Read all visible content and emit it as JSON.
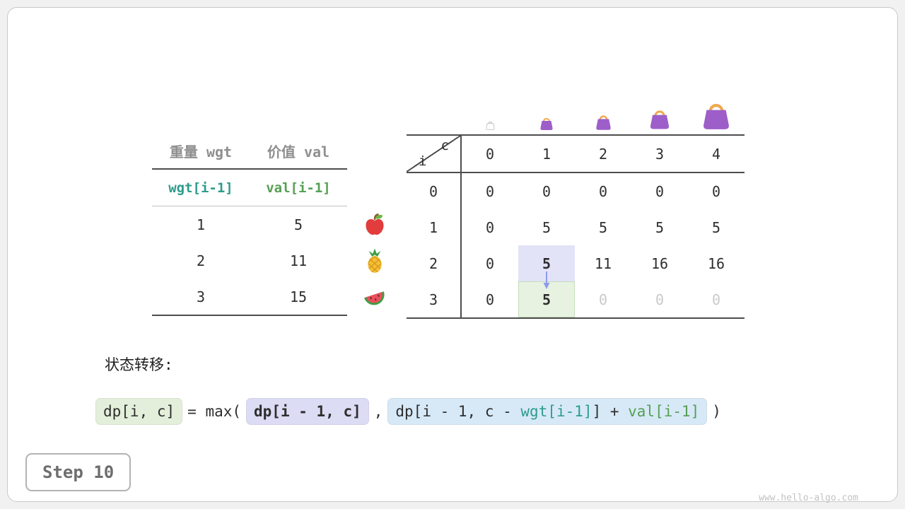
{
  "page": {
    "step_label": "Step 10",
    "watermark": "www.hello-algo.com"
  },
  "weights_table": {
    "col_headers": [
      "重量 wgt",
      "价值 val"
    ],
    "formula_row": {
      "wgt": "wgt[i-1]",
      "val": "val[i-1]"
    },
    "rows": [
      [
        "1",
        "5"
      ],
      [
        "2",
        "11"
      ],
      [
        "3",
        "15"
      ]
    ]
  },
  "icons": {
    "fruits": [
      "apple-icon",
      "pineapple-icon",
      "watermelon-icon"
    ],
    "bags": [
      "bag-icon-capacity-0",
      "bag-icon-capacity-1",
      "bag-icon-capacity-2",
      "bag-icon-capacity-3",
      "bag-icon-capacity-4"
    ],
    "arrow": "transition-arrow-icon"
  },
  "dp_table": {
    "corner": {
      "row_axis": "i",
      "col_axis": "c"
    },
    "col_headers": [
      "0",
      "1",
      "2",
      "3",
      "4"
    ],
    "row_headers": [
      "0",
      "1",
      "2",
      "3"
    ],
    "rows": [
      [
        "0",
        "0",
        "0",
        "0",
        "0"
      ],
      [
        "0",
        "5",
        "5",
        "5",
        "5"
      ],
      [
        "0",
        "5",
        "11",
        "16",
        "16"
      ],
      [
        "0",
        "5",
        "0",
        "0",
        "0"
      ]
    ],
    "cell_styles": {
      "2,1": "hl-purple",
      "3,1": "hl-green",
      "3,2": "dim",
      "3,3": "dim",
      "3,4": "dim"
    }
  },
  "transition": {
    "label": "状态转移:",
    "lhs": "dp[i, c]",
    "equals": "= max(",
    "arg1": "dp[i - 1, c]",
    "comma": ",",
    "arg2_prefix": "dp[i - 1, c - ",
    "arg2_wgt": "wgt[i-1]",
    "arg2_mid": "] + ",
    "arg2_val": "val[i-1]",
    "close": ")"
  },
  "colors": {
    "teal": "#2c9c8c",
    "green": "#55a055",
    "purple_highlight": "#e3e3f7",
    "green_highlight": "#e7f2e1",
    "blue_highlight": "#d7e9f7",
    "bag_purple": "#9d5ec9",
    "bag_handle": "#f0a94f",
    "arrow": "#8b9ced"
  }
}
